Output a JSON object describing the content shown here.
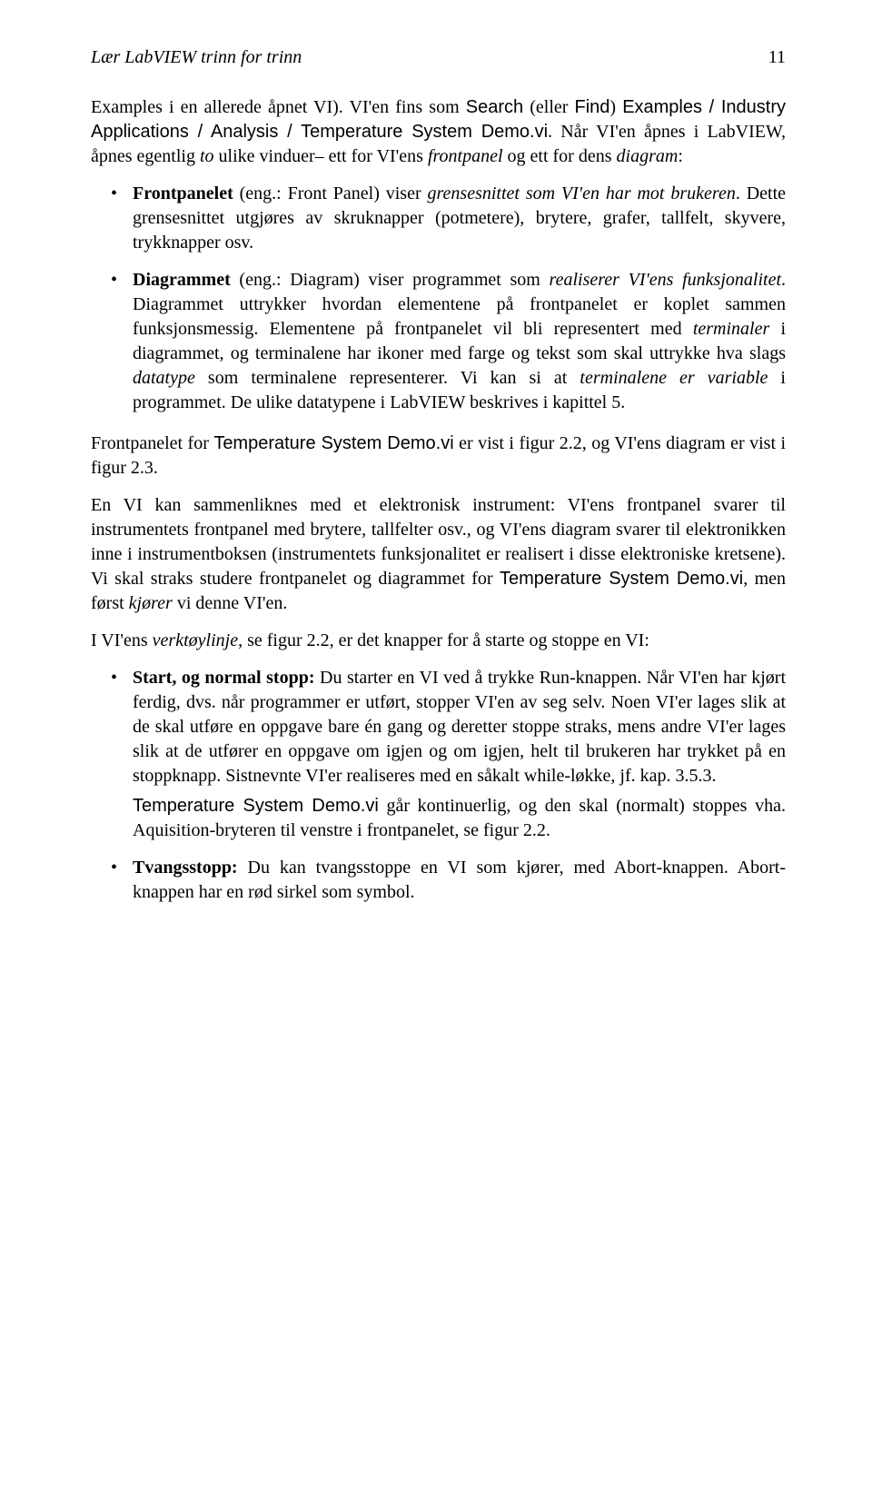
{
  "header": {
    "title": "Lær LabVIEW trinn for trinn",
    "page_number": "11"
  },
  "para_intro_a": "Examples i en allerede åpnet VI). VI'en fins som ",
  "para_intro_b": "Search",
  "para_intro_c": " (eller ",
  "para_intro_d": "Find",
  "para_intro_e": ") ",
  "para_intro_f": "Examples / Industry Applications / Analysis / Temperature System Demo.vi",
  "para_intro_g": ". Når VI'en åpnes i LabVIEW, åpnes egentlig ",
  "para_intro_h": "to",
  "para_intro_i": " ulike vinduer– ett for VI'ens ",
  "para_intro_j": "frontpanel",
  "para_intro_k": " og ett for dens ",
  "para_intro_l": "diagram",
  "para_intro_m": ":",
  "bullet1_a": "Frontpanelet",
  "bullet1_b": " (eng.: Front Panel) viser ",
  "bullet1_c": "grensesnittet som VI'en har mot brukeren",
  "bullet1_d": ". Dette grensesnittet utgjøres av skruknapper (potmetere), brytere, grafer, tallfelt, skyvere, trykknapper osv.",
  "bullet2_a": "Diagrammet",
  "bullet2_b": " (eng.: Diagram) viser programmet som ",
  "bullet2_c": "realiserer VI'ens funksjonalitet",
  "bullet2_d": ". Diagrammet uttrykker hvordan elementene på frontpanelet er koplet sammen funksjonsmessig. Elementene på frontpanelet vil bli representert med ",
  "bullet2_e": "terminaler",
  "bullet2_f": " i diagrammet, og terminalene har ikoner med farge og tekst som skal uttrykke hva slags ",
  "bullet2_g": "datatype",
  "bullet2_h": " som terminalene representerer. Vi kan si at ",
  "bullet2_i": "terminalene er variable",
  "bullet2_j": " i programmet. De ulike datatypene i LabVIEW beskrives i kapittel 5.",
  "para2_a": "Frontpanelet for ",
  "para2_b": "Temperature System Demo.vi",
  "para2_c": " er vist i figur 2.2, og VI'ens diagram er vist i figur 2.3.",
  "para3_a": "En VI kan sammenliknes med et elektronisk instrument: VI'ens frontpanel svarer til instrumentets frontpanel med brytere, tallfelter osv., og VI'ens diagram svarer til elektronikken inne i instrumentboksen (instrumentets funksjonalitet er realisert i disse elektroniske kretsene). Vi skal straks studere frontpanelet og diagrammet for ",
  "para3_b": "Temperature System Demo.vi",
  "para3_c": ", men først ",
  "para3_d": "kjører",
  "para3_e": " vi denne VI'en.",
  "para4_a": "I VI'ens ",
  "para4_b": "verktøylinje",
  "para4_c": ", se figur 2.2, er det knapper for å starte og stoppe en VI:",
  "bulletB1_a": "Start, og normal stopp:",
  "bulletB1_b": " Du starter en VI ved å trykke Run-knappen. Når VI'en har kjørt ferdig, dvs. når programmer er utført, stopper VI'en av seg selv. Noen VI'er lages slik at de skal utføre en oppgave bare én gang og deretter stoppe straks, mens andre VI'er lages slik at de utfører en oppgave om igjen og om igjen, helt til brukeren har trykket på en stoppknapp. Sistnevnte VI'er realiseres med en såkalt while-løkke, jf. kap. 3.5.3.",
  "bulletB1_cont_a": "Temperature System Demo.vi",
  "bulletB1_cont_b": " går kontinuerlig, og den skal (normalt) stoppes vha. Aquisition-bryteren til venstre i frontpanelet, se figur 2.2.",
  "bulletB2_a": "Tvangsstopp:",
  "bulletB2_b": " Du kan tvangsstoppe en VI som kjører, med Abort-knappen. Abort-knappen har en rød sirkel som symbol."
}
